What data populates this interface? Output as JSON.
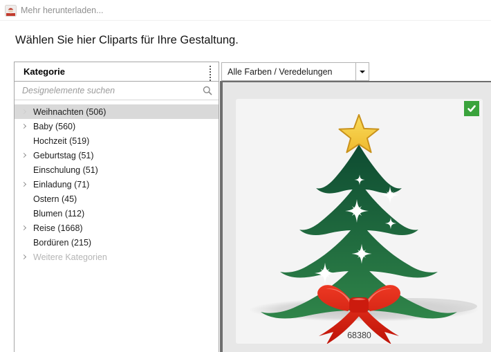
{
  "window": {
    "menu": {
      "download_more_label": "Mehr herunterladen...",
      "icon": "santa-thumbnail-icon"
    },
    "heading": "Wählen Sie hier Cliparts für Ihre Gestaltung."
  },
  "sidebar": {
    "header": "Kategorie",
    "search": {
      "placeholder": "Designelemente suchen",
      "icon": "search-icon"
    },
    "categories": [
      {
        "label": "Weihnachten (506)",
        "expandable": true,
        "faint": true,
        "selected": true
      },
      {
        "label": "Baby (560)",
        "expandable": true
      },
      {
        "label": "Hochzeit (519)"
      },
      {
        "label": "Geburtstag (51)",
        "expandable": true
      },
      {
        "label": "Einschulung (51)"
      },
      {
        "label": "Einladung (71)",
        "expandable": true
      },
      {
        "label": "Ostern (45)"
      },
      {
        "label": "Blumen (112)"
      },
      {
        "label": "Reise (1668)",
        "expandable": true
      },
      {
        "label": "Bordüren (215)"
      },
      {
        "label": "Weitere Kategorien",
        "expandable": true,
        "muted": true
      }
    ]
  },
  "content": {
    "filter_dropdown": {
      "value": "Alle Farben / Veredelungen"
    },
    "clipart": {
      "id": "68380",
      "selected": true,
      "image": "christmas-tree-with-star-and-red-bow"
    },
    "colors": {
      "selected_badge_green": "#3aa33c",
      "panel_gray": "#e7e7e7",
      "tile_gray": "#f4f4f4",
      "tree_dark_green": "#0d4a31",
      "tree_light_green": "#2f8449",
      "star_gold": "#f2c53b",
      "bow_red": "#d8271a"
    }
  }
}
